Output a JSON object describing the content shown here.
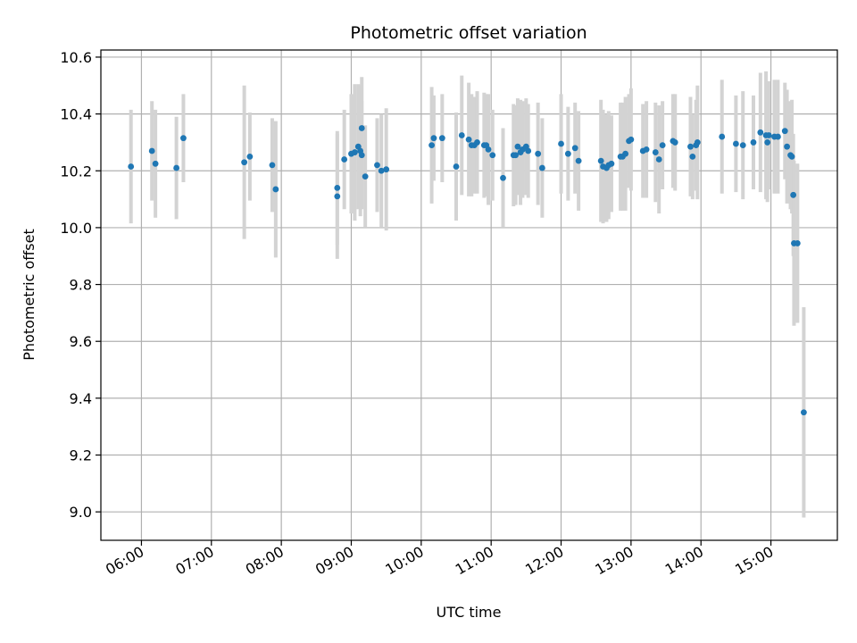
{
  "chart_data": {
    "type": "scatter",
    "title": "Photometric offset variation",
    "xlabel": "UTC time",
    "ylabel": "Photometric offset",
    "x_ticks": [
      "06:00",
      "07:00",
      "08:00",
      "09:00",
      "10:00",
      "11:00",
      "12:00",
      "13:00",
      "14:00",
      "15:00"
    ],
    "x_tick_hours": [
      6,
      7,
      8,
      9,
      10,
      11,
      12,
      13,
      14,
      15
    ],
    "y_ticks": [
      "9.0",
      "9.2",
      "9.4",
      "9.6",
      "9.8",
      "10.0",
      "10.2",
      "10.4",
      "10.6"
    ],
    "xlim_hours": [
      5.42,
      15.95
    ],
    "ylim": [
      8.9,
      10.625
    ],
    "grid": true,
    "colors": {
      "point": "#1f77b4",
      "errorbar": "#d3d3d3",
      "grid": "#b0b0b0"
    },
    "series": [
      {
        "time_hours": [
          5.85,
          6.15,
          6.2,
          6.5,
          6.6,
          7.47,
          7.55,
          7.87,
          7.92,
          8.8,
          8.8,
          8.9,
          9.0,
          9.05,
          9.1,
          9.13,
          9.15,
          9.15,
          9.2,
          9.37,
          9.43,
          9.5,
          10.15,
          10.18,
          10.3,
          10.5,
          10.58,
          10.68,
          10.72,
          10.76,
          10.8,
          10.9,
          10.93,
          10.96,
          11.02,
          11.17,
          11.32,
          11.35,
          11.38,
          11.42,
          11.45,
          11.5,
          11.53,
          11.67,
          11.73,
          12.0,
          12.1,
          12.2,
          12.25,
          12.57,
          12.6,
          12.65,
          12.68,
          12.72,
          12.85,
          12.88,
          12.92,
          12.97,
          13.0,
          13.17,
          13.22,
          13.35,
          13.4,
          13.45,
          13.6,
          13.63,
          13.85,
          13.88,
          13.93,
          13.95,
          14.3,
          14.5,
          14.6,
          14.75,
          14.85,
          14.93,
          14.95,
          14.97,
          15.05,
          15.1,
          15.2,
          15.23,
          15.28,
          15.3,
          15.32,
          15.33,
          15.38,
          15.47
        ],
        "values": [
          10.215,
          10.27,
          10.225,
          10.21,
          10.315,
          10.23,
          10.25,
          10.22,
          10.135,
          10.14,
          10.11,
          10.24,
          10.26,
          10.265,
          10.285,
          10.27,
          10.255,
          10.35,
          10.18,
          10.22,
          10.2,
          10.205,
          10.29,
          10.315,
          10.315,
          10.215,
          10.325,
          10.31,
          10.29,
          10.29,
          10.3,
          10.29,
          10.29,
          10.275,
          10.255,
          10.175,
          10.255,
          10.255,
          10.285,
          10.265,
          10.275,
          10.285,
          10.27,
          10.26,
          10.21,
          10.295,
          10.26,
          10.28,
          10.235,
          10.235,
          10.215,
          10.21,
          10.22,
          10.225,
          10.25,
          10.25,
          10.26,
          10.305,
          10.31,
          10.27,
          10.275,
          10.265,
          10.24,
          10.29,
          10.305,
          10.3,
          10.285,
          10.25,
          10.29,
          10.3,
          10.32,
          10.295,
          10.29,
          10.3,
          10.335,
          10.325,
          10.3,
          10.325,
          10.32,
          10.32,
          10.34,
          10.285,
          10.255,
          10.25,
          10.115,
          9.945,
          9.945,
          9.35
        ],
        "errors": [
          0.2,
          0.175,
          0.19,
          0.18,
          0.155,
          0.27,
          0.155,
          0.165,
          0.24,
          0.2,
          0.22,
          0.175,
          0.21,
          0.24,
          0.22,
          0.23,
          0.19,
          0.18,
          0.18,
          0.165,
          0.2,
          0.215,
          0.205,
          0.15,
          0.155,
          0.19,
          0.21,
          0.2,
          0.18,
          0.17,
          0.18,
          0.185,
          0.18,
          0.195,
          0.16,
          0.175,
          0.18,
          0.175,
          0.17,
          0.185,
          0.17,
          0.17,
          0.165,
          0.18,
          0.175,
          0.175,
          0.165,
          0.16,
          0.175,
          0.215,
          0.2,
          0.19,
          0.19,
          0.17,
          0.19,
          0.19,
          0.2,
          0.165,
          0.18,
          0.165,
          0.17,
          0.175,
          0.19,
          0.155,
          0.165,
          0.17,
          0.175,
          0.15,
          0.16,
          0.2,
          0.2,
          0.17,
          0.19,
          0.165,
          0.21,
          0.225,
          0.21,
          0.19,
          0.2,
          0.2,
          0.17,
          0.2,
          0.19,
          0.2,
          0.215,
          0.29,
          0.28,
          0.37
        ]
      }
    ]
  }
}
